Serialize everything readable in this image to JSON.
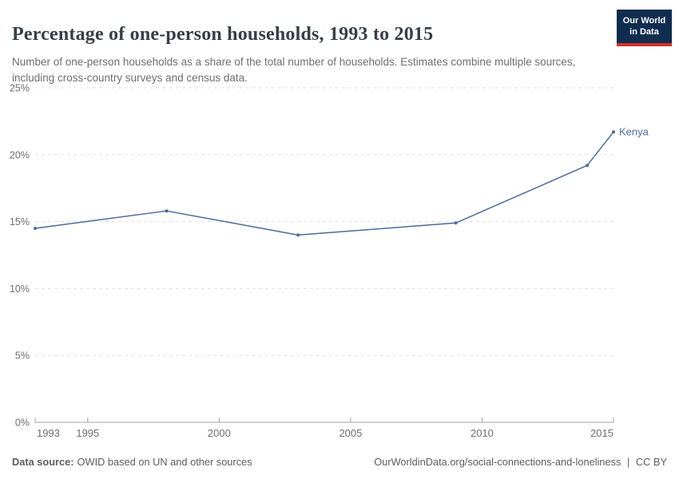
{
  "header": {
    "title": "Percentage of one-person households, 1993 to 2015",
    "subtitle": "Number of one-person households as a share of the total number of households. Estimates combine multiple sources, including cross-country surveys and census data."
  },
  "logo": {
    "line1": "Our World",
    "line2": "in Data"
  },
  "chart_data": {
    "type": "line",
    "title": "Percentage of one-person households, 1993 to 2015",
    "xlabel": "",
    "ylabel": "",
    "xlim": [
      1993,
      2015
    ],
    "ylim": [
      0,
      25
    ],
    "xticks": [
      1993,
      1995,
      2000,
      2005,
      2010,
      2015
    ],
    "yticks": [
      0,
      5,
      10,
      15,
      20,
      25
    ],
    "y_tick_suffix": "%",
    "grid": "horizontal-dashed",
    "legend": "line-end-label",
    "series": [
      {
        "name": "Kenya",
        "color": "#4C6A9C",
        "x": [
          1993,
          1998,
          2003,
          2009,
          2014,
          2015
        ],
        "values": [
          14.5,
          15.8,
          14.0,
          14.9,
          19.2,
          21.7
        ]
      }
    ]
  },
  "footer": {
    "source_label": "Data source:",
    "source_text": "OWID based on UN and other sources",
    "link": "OurWorldinData.org/social-connections-and-loneliness",
    "separator": "|",
    "license": "CC BY"
  },
  "colors": {
    "accent": "#4C6A9C",
    "grid": "#e0e0e0",
    "axis": "#a3a3a3",
    "tick_label": "#6e6e6e",
    "title": "#383d48",
    "logo_navy": "#102d50",
    "logo_red": "#d0342c"
  }
}
